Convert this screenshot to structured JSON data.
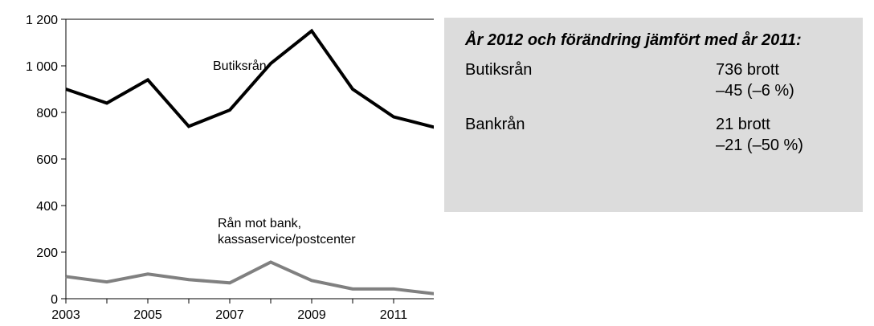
{
  "chart_data": {
    "type": "line",
    "x": [
      2003,
      2004,
      2005,
      2006,
      2007,
      2008,
      2009,
      2010,
      2011,
      2012
    ],
    "series": [
      {
        "name": "Butiksrån",
        "values": [
          900,
          840,
          940,
          740,
          810,
          1010,
          1150,
          900,
          781,
          736
        ],
        "color": "#000000"
      },
      {
        "name": "Rån mot bank, kassaservice/postcenter",
        "values": [
          95,
          72,
          106,
          82,
          68,
          157,
          78,
          42,
          42,
          21
        ],
        "color": "#808080"
      }
    ],
    "yticks": [
      0,
      200,
      400,
      600,
      800,
      1000,
      1200
    ],
    "ytick_labels": [
      "0",
      "200",
      "400",
      "600",
      "800",
      "1 000",
      "1 200"
    ],
    "xticks": [
      2003,
      2005,
      2007,
      2009,
      2011
    ],
    "xtick_labels": [
      "2003",
      "2005",
      "2007",
      "2009",
      "2011"
    ],
    "ylim": [
      0,
      1200
    ],
    "xlim": [
      2003,
      2012
    ],
    "annotations": [
      "Butiksrån",
      "Rån mot bank,",
      "kassaservice/postcenter"
    ]
  },
  "panel": {
    "title": "År 2012 och förändring jämfört med år 2011:",
    "rows": [
      {
        "label": "Butiksrån",
        "value": "736 brott",
        "change": "–45 (–6 %)"
      },
      {
        "label": "Bankrån",
        "value": "21 brott",
        "change": "–21 (–50 %)"
      }
    ]
  }
}
